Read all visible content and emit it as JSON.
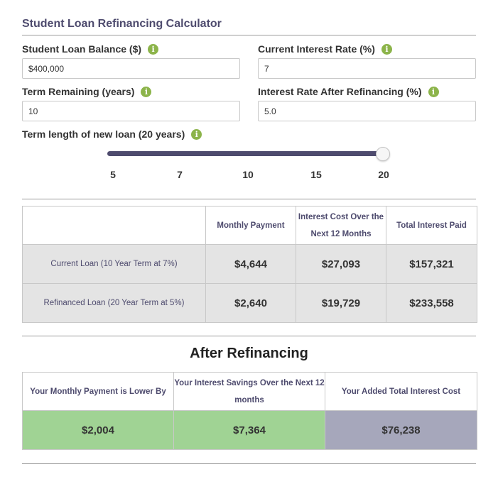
{
  "calculator": {
    "title": "Student Loan Refinancing Calculator"
  },
  "fields": {
    "balance": {
      "label": "Student Loan Balance ($)",
      "value": "$400,000"
    },
    "current_rate": {
      "label": "Current Interest Rate (%)",
      "value": "7"
    },
    "term_remaining": {
      "label": "Term Remaining (years)",
      "value": "10"
    },
    "new_rate": {
      "label": "Interest Rate After Refinancing (%)",
      "value": "5.0"
    }
  },
  "slider": {
    "label": "Term length of new loan (20 years)",
    "ticks": [
      "5",
      "7",
      "10",
      "15",
      "20"
    ],
    "selected": "20"
  },
  "comparison": {
    "headers": [
      "Monthly Payment",
      "Interest Cost Over the Next 12 Months",
      "Total Interest Paid"
    ],
    "rows": [
      {
        "label": "Current Loan (10 Year Term at 7%)",
        "monthly": "$4,644",
        "interest_12": "$27,093",
        "total_interest": "$157,321"
      },
      {
        "label": "Refinanced Loan (20 Year Term at 5%)",
        "monthly": "$2,640",
        "interest_12": "$19,729",
        "total_interest": "$233,558"
      }
    ]
  },
  "after": {
    "heading": "After Refinancing",
    "headers": [
      "Your Monthly Payment is Lower By",
      "Your Interest Savings Over the Next 12 months",
      "Your Added Total Interest Cost"
    ],
    "values": [
      "$2,004",
      "$7,364",
      "$76,238"
    ]
  },
  "icons": {
    "info": "info-icon"
  },
  "colors": {
    "accent": "#4e4b6e",
    "info": "#8cb44a",
    "savings": "#a0d394",
    "cost": "#a6a7bb"
  }
}
